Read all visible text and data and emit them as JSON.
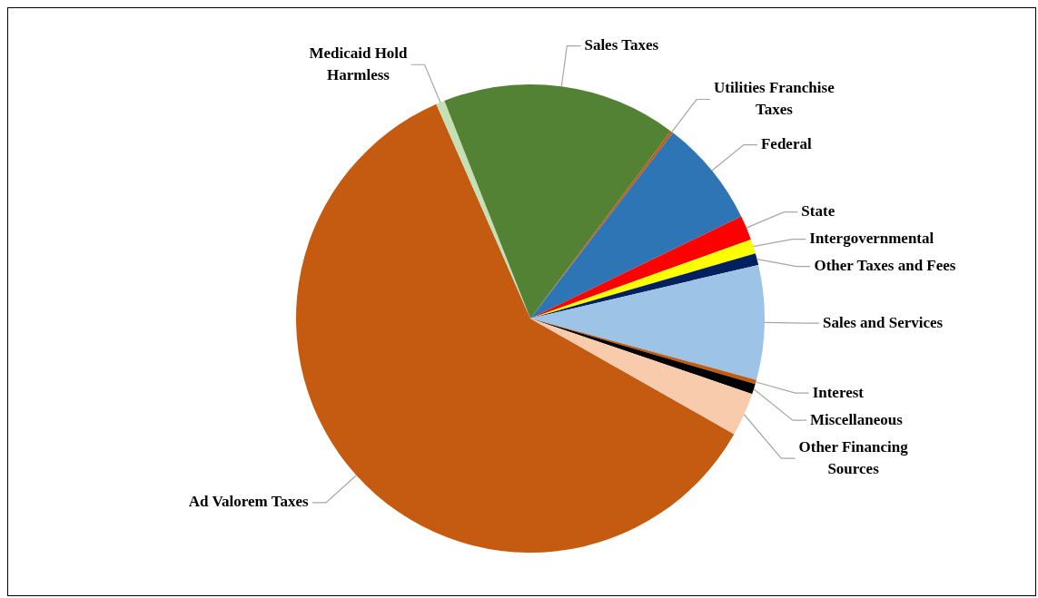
{
  "chart_data": {
    "type": "pie",
    "categories": [
      "Ad Valorem Taxes",
      "Medicaid Hold Harmless",
      "Sales Taxes",
      "Utilities Franchise Taxes",
      "Federal",
      "State",
      "Intergovernmental",
      "Other Taxes and Fees",
      "Sales and Services",
      "Interest",
      "Miscellaneous",
      "Other Financing Sources"
    ],
    "values": [
      60.2,
      0.6,
      16.2,
      0.2,
      7.4,
      1.7,
      1.0,
      0.8,
      7.9,
      0.3,
      0.7,
      3.0
    ],
    "colors": [
      "#c55a11",
      "#c5e0b4",
      "#548235",
      "#c55a11",
      "#2e75b6",
      "#ff0000",
      "#ffff00",
      "#002060",
      "#9dc3e6",
      "#c55a11",
      "#000000",
      "#f8cbad"
    ]
  }
}
